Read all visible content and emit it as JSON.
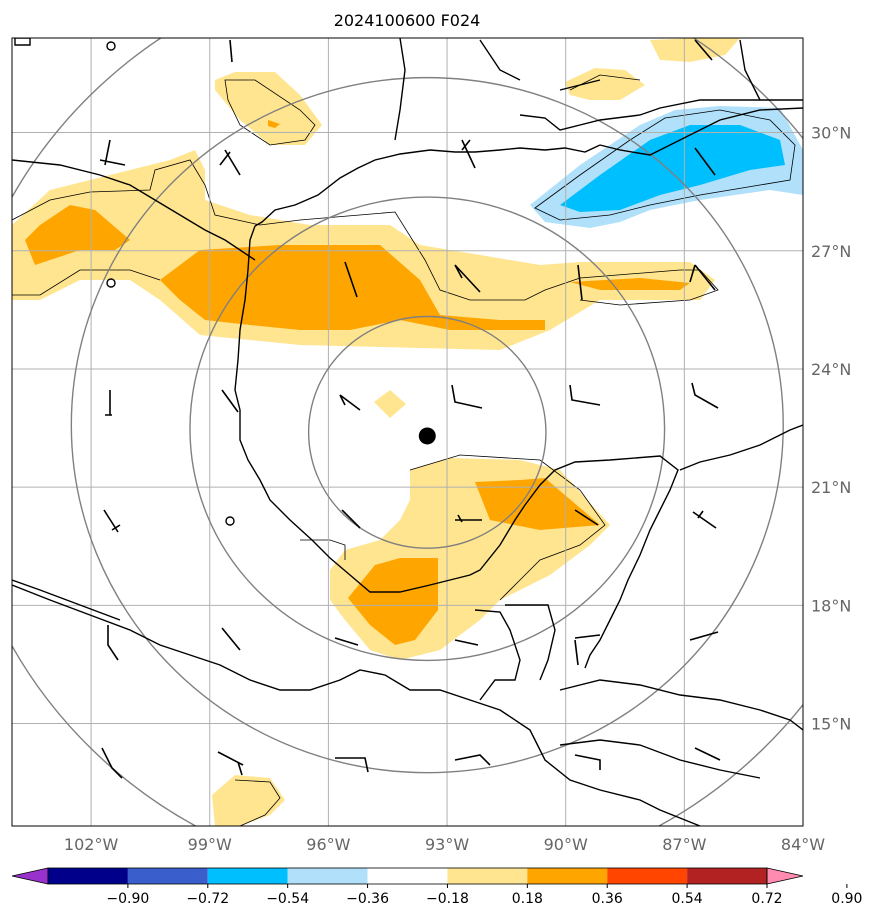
{
  "title": "2024100600 F024",
  "map": {
    "lon_range": [
      -104,
      -84
    ],
    "lat_range": [
      12.4,
      32.4
    ],
    "lon_ticks": [
      {
        "value": -102,
        "label": "102°W"
      },
      {
        "value": -99,
        "label": "99°W"
      },
      {
        "value": -96,
        "label": "96°W"
      },
      {
        "value": -93,
        "label": "93°W"
      },
      {
        "value": -90,
        "label": "90°W"
      },
      {
        "value": -87,
        "label": "87°W"
      },
      {
        "value": -84,
        "label": "84°W"
      }
    ],
    "lat_ticks": [
      {
        "value": 30,
        "label": "30°N"
      },
      {
        "value": 27,
        "label": "27°N"
      },
      {
        "value": 24,
        "label": "24°N"
      },
      {
        "value": 21,
        "label": "21°N"
      },
      {
        "value": 18,
        "label": "18°N"
      },
      {
        "value": 15,
        "label": "15°N"
      }
    ],
    "center_marker": {
      "lon": -93.5,
      "lat": 22.3
    },
    "range_rings_deg": [
      3,
      6,
      9,
      12
    ],
    "gridlines": true
  },
  "colorbar": {
    "levels": [
      -0.9,
      -0.72,
      -0.54,
      -0.36,
      -0.18,
      0.18,
      0.36,
      0.54,
      0.72,
      0.9
    ],
    "labels": [
      "−0.90",
      "−0.72",
      "−0.54",
      "−0.36",
      "−0.18",
      "0.18",
      "0.36",
      "0.54",
      "0.72",
      "0.90"
    ],
    "colors": [
      "#9932cc",
      "#00008b",
      "#3a5fcd",
      "#00bfff",
      "#b0e0fa",
      "#ffffff",
      "#ffe58f",
      "#ffa500",
      "#ff4500",
      "#b22222",
      "#ff8bb0"
    ]
  },
  "colors": {
    "grid": "#b0b0b0",
    "rings": "#808080",
    "coast": "#000000"
  }
}
